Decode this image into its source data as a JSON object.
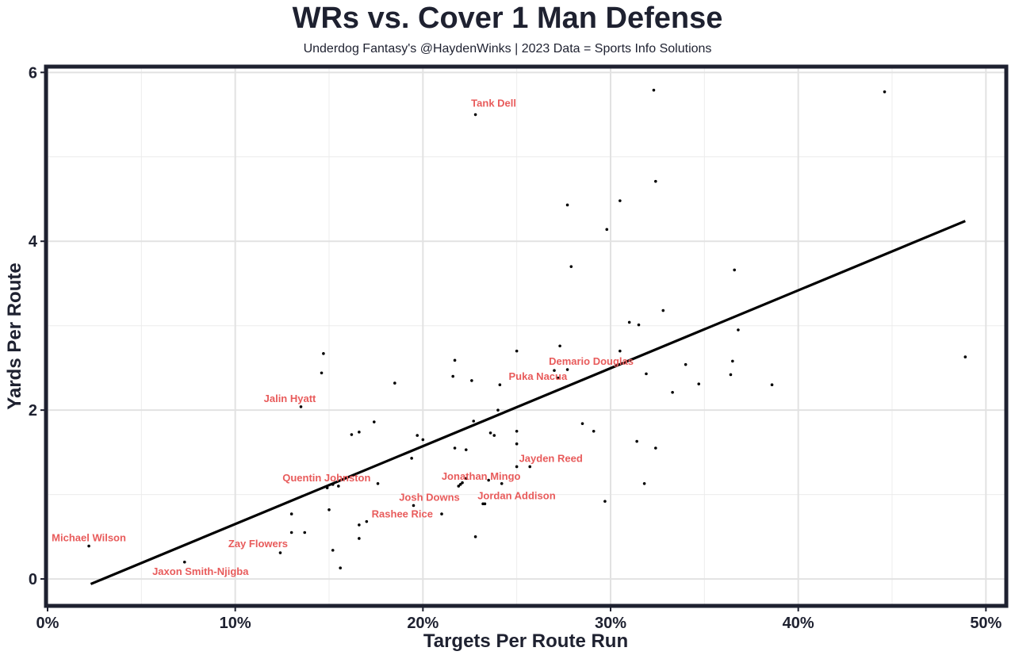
{
  "title": "WRs vs. Cover 1 Man Defense",
  "subtitle": "Underdog Fantasy's @HaydenWinks | 2023 Data = Sports Info Solutions",
  "chart_data": {
    "type": "scatter",
    "title": "WRs vs. Cover 1 Man Defense",
    "xlabel": "Targets Per Route Run",
    "ylabel": "Yards Per Route",
    "xlim": [
      0,
      0.51
    ],
    "ylim": [
      -0.3,
      6.05
    ],
    "x_ticks": [
      0,
      0.1,
      0.2,
      0.3,
      0.4,
      0.5
    ],
    "x_tick_labels": [
      "0%",
      "10%",
      "20%",
      "30%",
      "40%",
      "50%"
    ],
    "y_ticks": [
      0,
      2,
      4,
      6
    ],
    "y_tick_labels": [
      "0",
      "2",
      "4",
      "6"
    ],
    "grid": true,
    "trendline": {
      "x": [
        0.023,
        0.489
      ],
      "y": [
        -0.06,
        4.24
      ]
    },
    "labeled_points": [
      {
        "name": "Tank Dell",
        "x": 0.228,
        "y": 5.5
      },
      {
        "name": "Demario Douglas",
        "x": 0.277,
        "y": 2.48
      },
      {
        "name": "Puka Nacua",
        "x": 0.241,
        "y": 2.3
      },
      {
        "name": "Jalin Hyatt",
        "x": 0.135,
        "y": 2.04
      },
      {
        "name": "Jayden Reed",
        "x": 0.25,
        "y": 1.33
      },
      {
        "name": "Jonathan Mingo",
        "x": 0.22,
        "y": 1.12
      },
      {
        "name": "Quentin Johnston",
        "x": 0.155,
        "y": 1.1
      },
      {
        "name": "Jordan Addison",
        "x": 0.233,
        "y": 0.89
      },
      {
        "name": "Josh Downs",
        "x": 0.195,
        "y": 0.87
      },
      {
        "name": "Rashee Rice",
        "x": 0.17,
        "y": 0.68
      },
      {
        "name": "Michael Wilson",
        "x": 0.022,
        "y": 0.39
      },
      {
        "name": "Zay Flowers",
        "x": 0.124,
        "y": 0.31
      },
      {
        "name": "Jaxon Smith-Njigba",
        "x": 0.073,
        "y": 0.2
      }
    ],
    "points": [
      [
        0.323,
        5.79
      ],
      [
        0.446,
        5.77
      ],
      [
        0.324,
        4.71
      ],
      [
        0.277,
        4.43
      ],
      [
        0.305,
        4.48
      ],
      [
        0.298,
        4.14
      ],
      [
        0.279,
        3.7
      ],
      [
        0.366,
        3.66
      ],
      [
        0.328,
        3.18
      ],
      [
        0.31,
        3.04
      ],
      [
        0.315,
        3.01
      ],
      [
        0.368,
        2.95
      ],
      [
        0.147,
        2.67
      ],
      [
        0.25,
        2.7
      ],
      [
        0.273,
        2.76
      ],
      [
        0.305,
        2.7
      ],
      [
        0.489,
        2.63
      ],
      [
        0.217,
        2.59
      ],
      [
        0.365,
        2.58
      ],
      [
        0.34,
        2.54
      ],
      [
        0.146,
        2.44
      ],
      [
        0.27,
        2.47
      ],
      [
        0.319,
        2.43
      ],
      [
        0.364,
        2.42
      ],
      [
        0.216,
        2.4
      ],
      [
        0.226,
        2.35
      ],
      [
        0.272,
        2.38
      ],
      [
        0.185,
        2.32
      ],
      [
        0.347,
        2.31
      ],
      [
        0.386,
        2.3
      ],
      [
        0.333,
        2.21
      ],
      [
        0.24,
        2.0
      ],
      [
        0.174,
        1.86
      ],
      [
        0.227,
        1.87
      ],
      [
        0.285,
        1.84
      ],
      [
        0.166,
        1.74
      ],
      [
        0.162,
        1.71
      ],
      [
        0.236,
        1.73
      ],
      [
        0.238,
        1.7
      ],
      [
        0.25,
        1.75
      ],
      [
        0.291,
        1.75
      ],
      [
        0.197,
        1.7
      ],
      [
        0.2,
        1.65
      ],
      [
        0.314,
        1.63
      ],
      [
        0.25,
        1.6
      ],
      [
        0.217,
        1.55
      ],
      [
        0.223,
        1.53
      ],
      [
        0.324,
        1.55
      ],
      [
        0.194,
        1.43
      ],
      [
        0.257,
        1.33
      ],
      [
        0.235,
        1.17
      ],
      [
        0.242,
        1.13
      ],
      [
        0.223,
        1.19
      ],
      [
        0.221,
        1.14
      ],
      [
        0.219,
        1.1
      ],
      [
        0.176,
        1.13
      ],
      [
        0.152,
        1.12
      ],
      [
        0.149,
        1.08
      ],
      [
        0.318,
        1.13
      ],
      [
        0.232,
        0.89
      ],
      [
        0.297,
        0.92
      ],
      [
        0.15,
        0.82
      ],
      [
        0.21,
        0.77
      ],
      [
        0.13,
        0.77
      ],
      [
        0.166,
        0.64
      ],
      [
        0.13,
        0.55
      ],
      [
        0.137,
        0.55
      ],
      [
        0.166,
        0.48
      ],
      [
        0.228,
        0.5
      ],
      [
        0.152,
        0.34
      ],
      [
        0.156,
        0.13
      ]
    ]
  }
}
